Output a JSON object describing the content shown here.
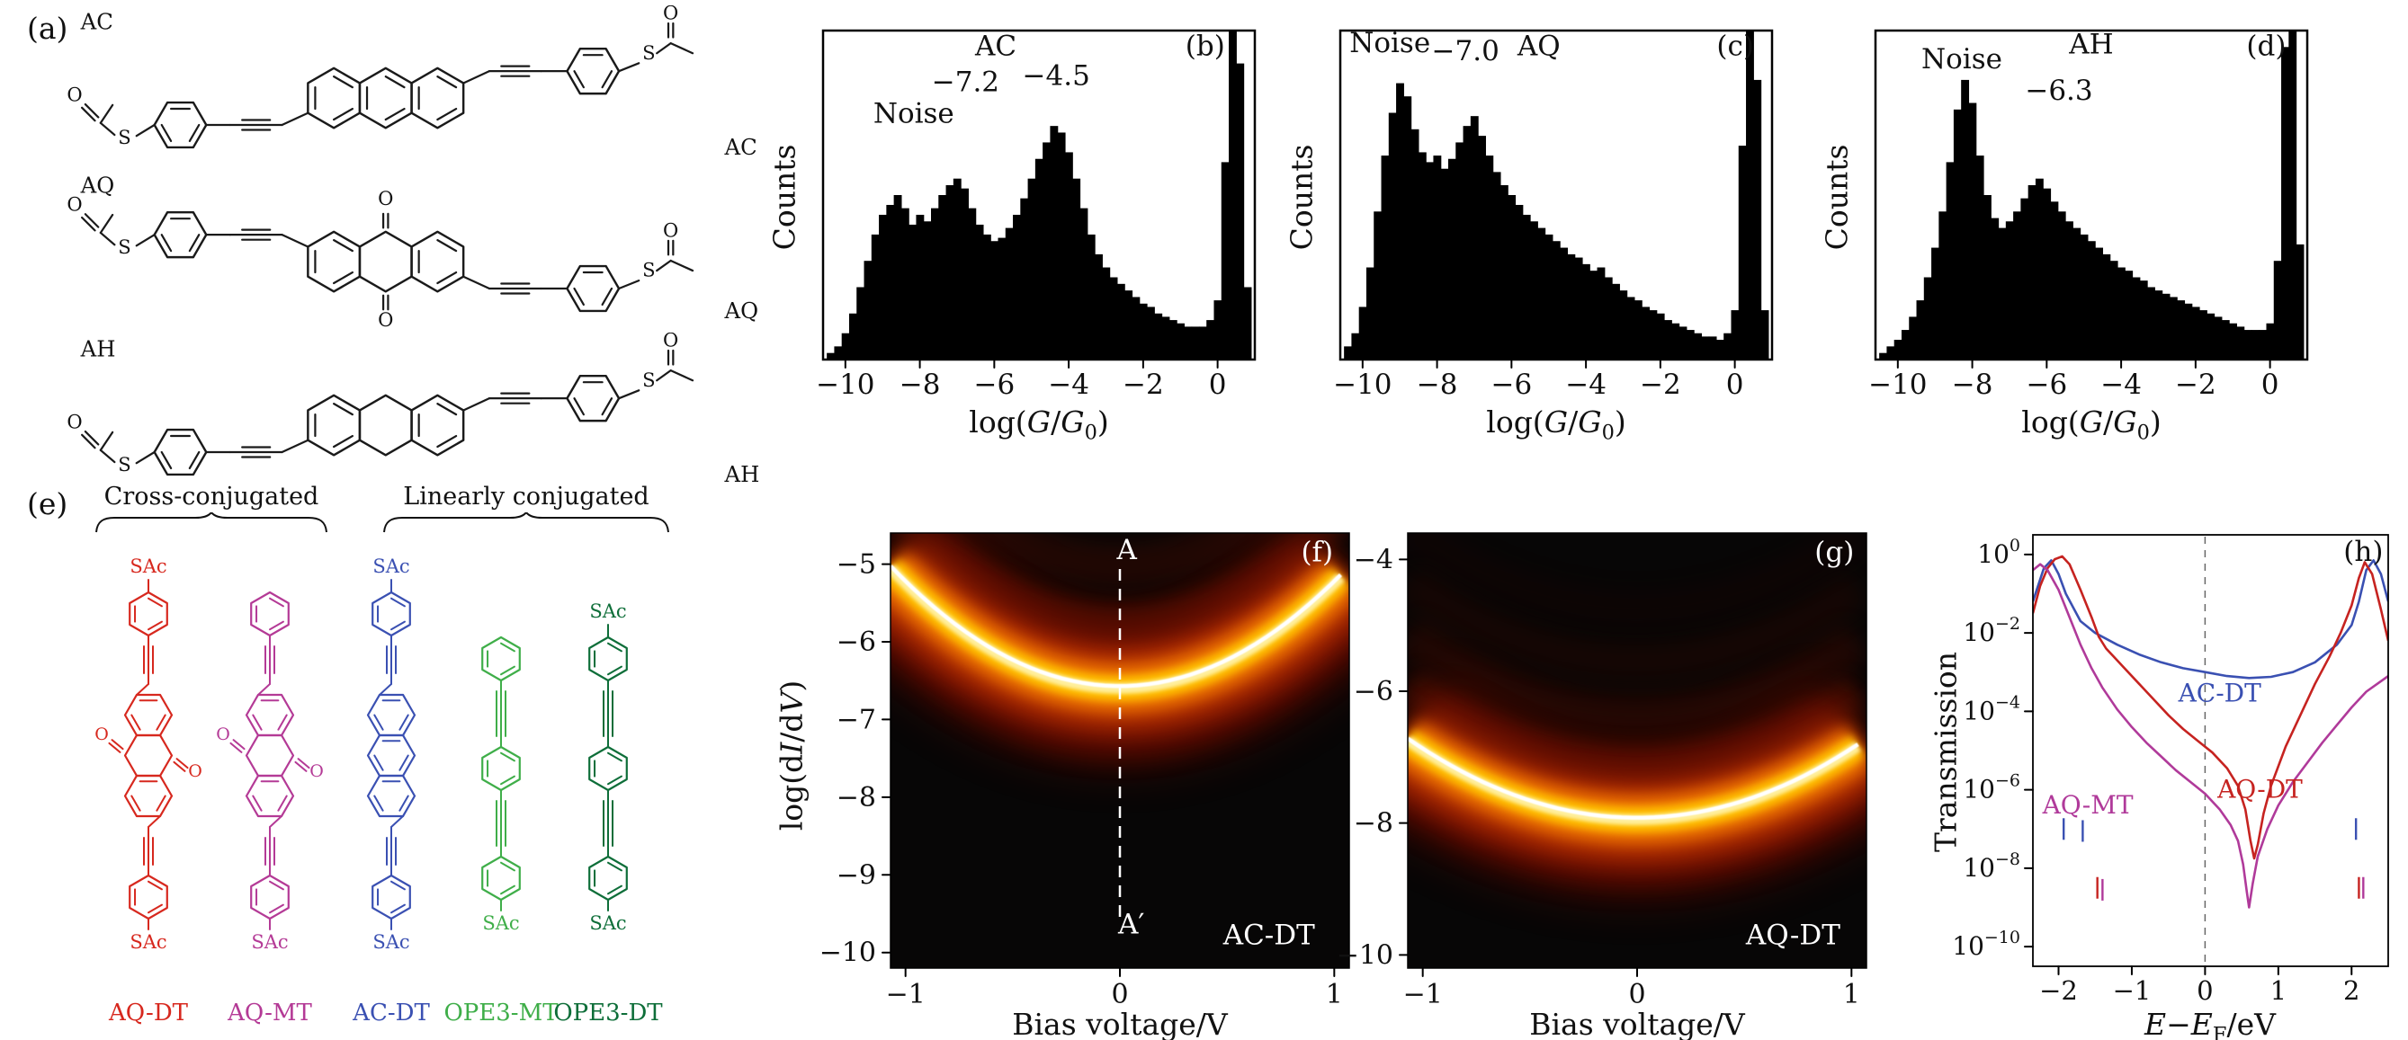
{
  "panels": {
    "a": {
      "tag": "(a)"
    },
    "e": {
      "tag": "(e)",
      "group1": "Cross-conjugated",
      "group2": "Linearly conjugated"
    }
  },
  "atoms": {
    "o": "O",
    "s": "S",
    "sac": "SAc"
  },
  "panel_a_molecules": [
    {
      "name": "AC",
      "label_right": "AC",
      "core": "anthracene",
      "tilt": "up"
    },
    {
      "name": "AQ",
      "label_right": "AQ",
      "core": "anthraquinone",
      "tilt": "down"
    },
    {
      "name": "AH",
      "label_right": "AH",
      "core": "dihydroanthracene",
      "tilt": "up"
    }
  ],
  "panel_e_molecules": [
    {
      "name": "AQ-DT",
      "color": "#d7281e",
      "type": "AQ",
      "sac_top": "SAc",
      "sac_bottom": "SAc"
    },
    {
      "name": "AQ-MT",
      "color": "#b43a96",
      "type": "AQ",
      "sac_top": "",
      "sac_bottom": "SAc"
    },
    {
      "name": "AC-DT",
      "color": "#3a50b2",
      "type": "AC",
      "sac_top": "SAc",
      "sac_bottom": "SAc"
    },
    {
      "name": "OPE3-MT",
      "color": "#3fae49",
      "type": "OPE3",
      "sac_top": "",
      "sac_bottom": "SAc"
    },
    {
      "name": "OPE3-DT",
      "color": "#0e6e39",
      "type": "OPE3",
      "sac_top": "SAc",
      "sac_bottom": "SAc"
    }
  ],
  "axis_labels": {
    "hist_x": "log(<i>G</i>/<i>G</i><sub>0</sub>)",
    "hist_y": "Counts",
    "heat_y": "log(d<i>I</i>/d<i>V</i>)",
    "heat_x": "Bias voltage/V",
    "trans_y": "Transmission",
    "trans_x": "<i>E</i>−<i>E</i><sub>F</sub>/eV"
  },
  "chart_data": [
    {
      "id": "hist-ac",
      "type": "bar",
      "panel": "b",
      "molecule": "AC",
      "xlabel": "log(G/G0)",
      "ylabel": "Counts",
      "xmin": -10.6,
      "xmax": 1.0,
      "bin_start": -10.5,
      "bin_width": 0.2,
      "xticks": [
        -10,
        -8,
        -6,
        -4,
        -2,
        0
      ],
      "peak_labels": [
        "Noise",
        "-7.2",
        "-4.5"
      ],
      "values": [
        0.02,
        0.04,
        0.08,
        0.14,
        0.22,
        0.3,
        0.38,
        0.44,
        0.47,
        0.5,
        0.46,
        0.41,
        0.44,
        0.42,
        0.46,
        0.5,
        0.53,
        0.55,
        0.52,
        0.46,
        0.41,
        0.38,
        0.36,
        0.37,
        0.4,
        0.44,
        0.49,
        0.55,
        0.61,
        0.66,
        0.71,
        0.69,
        0.63,
        0.55,
        0.46,
        0.38,
        0.32,
        0.28,
        0.25,
        0.23,
        0.21,
        0.19,
        0.17,
        0.16,
        0.14,
        0.13,
        0.12,
        0.11,
        0.1,
        0.1,
        0.1,
        0.12,
        0.18,
        0.6,
        1.0,
        0.9,
        0.22
      ],
      "annotations": [
        {
          "text": "Noise",
          "fx": 0.21,
          "fy": 0.28
        },
        {
          "text": "−7.2",
          "fx": 0.33,
          "fy": 0.185
        },
        {
          "text": "−4.5",
          "fx": 0.54,
          "fy": 0.165
        },
        {
          "text": "AC",
          "fx": 0.4,
          "fy": 0.075
        },
        {
          "text": "(b)",
          "fx": 0.885,
          "fy": 0.075
        }
      ]
    },
    {
      "id": "hist-aq",
      "type": "bar",
      "panel": "c",
      "molecule": "AQ",
      "xlabel": "log(G/G0)",
      "ylabel": "Counts",
      "xmin": -10.6,
      "xmax": 1.0,
      "bin_start": -10.5,
      "bin_width": 0.2,
      "xticks": [
        -10,
        -8,
        -6,
        -4,
        -2,
        0
      ],
      "peak_labels": [
        "Noise",
        "-7.0"
      ],
      "values": [
        0.04,
        0.08,
        0.16,
        0.28,
        0.45,
        0.62,
        0.75,
        0.84,
        0.8,
        0.7,
        0.63,
        0.6,
        0.62,
        0.58,
        0.61,
        0.66,
        0.71,
        0.74,
        0.68,
        0.62,
        0.57,
        0.53,
        0.5,
        0.47,
        0.44,
        0.42,
        0.4,
        0.38,
        0.36,
        0.34,
        0.32,
        0.31,
        0.29,
        0.27,
        0.28,
        0.25,
        0.23,
        0.21,
        0.19,
        0.18,
        0.16,
        0.15,
        0.14,
        0.12,
        0.11,
        0.1,
        0.09,
        0.08,
        0.07,
        0.07,
        0.06,
        0.08,
        0.15,
        0.65,
        1.0,
        0.85,
        0.15
      ],
      "annotations": [
        {
          "text": "Noise",
          "fx": 0.115,
          "fy": 0.065
        },
        {
          "text": "−7.0",
          "fx": 0.29,
          "fy": 0.09
        },
        {
          "text": "AQ",
          "fx": 0.46,
          "fy": 0.075
        },
        {
          "text": "(c)",
          "fx": 0.915,
          "fy": 0.075
        }
      ]
    },
    {
      "id": "hist-ah",
      "type": "bar",
      "panel": "d",
      "molecule": "AH",
      "xlabel": "log(G/G0)",
      "ylabel": "Counts",
      "xmin": -10.6,
      "xmax": 1.0,
      "bin_start": -10.5,
      "bin_width": 0.2,
      "xticks": [
        -10,
        -8,
        -6,
        -4,
        -2,
        0
      ],
      "peak_labels": [
        "Noise",
        "-6.3"
      ],
      "values": [
        0.02,
        0.04,
        0.06,
        0.09,
        0.13,
        0.18,
        0.25,
        0.34,
        0.45,
        0.6,
        0.76,
        0.85,
        0.78,
        0.62,
        0.5,
        0.43,
        0.4,
        0.42,
        0.45,
        0.49,
        0.53,
        0.55,
        0.52,
        0.48,
        0.45,
        0.42,
        0.4,
        0.38,
        0.36,
        0.34,
        0.32,
        0.3,
        0.28,
        0.27,
        0.25,
        0.24,
        0.22,
        0.21,
        0.2,
        0.19,
        0.18,
        0.17,
        0.16,
        0.15,
        0.14,
        0.13,
        0.12,
        0.11,
        0.1,
        0.09,
        0.09,
        0.09,
        0.11,
        0.3,
        0.95,
        1.0,
        0.35
      ],
      "annotations": [
        {
          "text": "Noise",
          "fx": 0.2,
          "fy": 0.115
        },
        {
          "text": "−6.3",
          "fx": 0.425,
          "fy": 0.21
        },
        {
          "text": "AH",
          "fx": 0.5,
          "fy": 0.07
        },
        {
          "text": "(d)",
          "fx": 0.905,
          "fy": 0.075
        }
      ]
    },
    {
      "id": "heat-f",
      "type": "heatmap",
      "panel": "f",
      "molecule": "AC-DT",
      "xlabel": "Bias voltage/V",
      "ylabel": "log(dI/dV)",
      "xlim": [
        -1.07,
        1.07
      ],
      "xticks": [
        -1,
        0,
        1
      ],
      "ylim_top": -4.6,
      "ylim_bottom": -10.2,
      "yticks": [
        -5,
        -6,
        -7,
        -8,
        -9,
        -10
      ],
      "band": {
        "v0": -6.6,
        "k": 1.35
      },
      "dashed_line_x": 0,
      "annotations": [
        {
          "text": "A",
          "fx": 0.515,
          "fy": 0.06
        },
        {
          "text": "(f)",
          "fx": 0.93,
          "fy": 0.065
        },
        {
          "text": "A′",
          "fx": 0.525,
          "fy": 0.92
        },
        {
          "text": "AC-DT",
          "fx": 0.825,
          "fy": 0.945
        }
      ]
    },
    {
      "id": "heat-g",
      "type": "heatmap",
      "panel": "g",
      "molecule": "AQ-DT",
      "xlabel": "Bias voltage/V",
      "ylabel": "log(dI/dV)",
      "xlim": [
        -1.07,
        1.07
      ],
      "xticks": [
        -1,
        0,
        1
      ],
      "ylim_top": -3.6,
      "ylim_bottom": -10.2,
      "yticks": [
        -4,
        -6,
        -8,
        -10
      ],
      "band": {
        "v0": -7.95,
        "k": 1.05
      },
      "annotations": [
        {
          "text": "(g)",
          "fx": 0.93,
          "fy": 0.065
        },
        {
          "text": "AQ-DT",
          "fx": 0.84,
          "fy": 0.945
        }
      ]
    },
    {
      "id": "trans-h",
      "type": "line",
      "panel": "h",
      "xlabel": "E−EF/eV",
      "ylabel": "Transmission",
      "xlim": [
        -2.35,
        2.5
      ],
      "xticks": [
        -2,
        -1,
        0,
        1,
        2
      ],
      "ylim_exp": [
        0.5,
        -10.5
      ],
      "ytick_exponents": [
        0,
        -2,
        -4,
        -6,
        -8,
        -10
      ],
      "dashed_line_x": 0,
      "series": [
        {
          "name": "AC-DT",
          "color": "#3a50b2",
          "points": [
            [
              -2.35,
              -1.2
            ],
            [
              -2.2,
              -0.35
            ],
            [
              -2.1,
              -0.15
            ],
            [
              -2.0,
              -0.5
            ],
            [
              -1.9,
              -1.0
            ],
            [
              -1.7,
              -1.7
            ],
            [
              -1.5,
              -2.0
            ],
            [
              -1.2,
              -2.3
            ],
            [
              -0.9,
              -2.55
            ],
            [
              -0.6,
              -2.75
            ],
            [
              -0.3,
              -2.9
            ],
            [
              0,
              -3.0
            ],
            [
              0.3,
              -3.1
            ],
            [
              0.6,
              -3.15
            ],
            [
              0.9,
              -3.12
            ],
            [
              1.2,
              -3.0
            ],
            [
              1.5,
              -2.75
            ],
            [
              1.8,
              -2.3
            ],
            [
              2.0,
              -1.8
            ],
            [
              2.1,
              -1.2
            ],
            [
              2.2,
              -0.4
            ],
            [
              2.3,
              -0.15
            ],
            [
              2.4,
              -0.5
            ],
            [
              2.5,
              -1.2
            ]
          ]
        },
        {
          "name": "AQ-DT",
          "color": "#c62320",
          "points": [
            [
              -2.35,
              -1.5
            ],
            [
              -2.25,
              -0.8
            ],
            [
              -2.15,
              -0.35
            ],
            [
              -2.05,
              -0.12
            ],
            [
              -1.95,
              -0.05
            ],
            [
              -1.85,
              -0.25
            ],
            [
              -1.7,
              -0.9
            ],
            [
              -1.55,
              -1.6
            ],
            [
              -1.45,
              -2.1
            ],
            [
              -1.35,
              -2.4
            ],
            [
              -1.25,
              -2.6
            ],
            [
              -1.1,
              -2.9
            ],
            [
              -0.9,
              -3.3
            ],
            [
              -0.7,
              -3.7
            ],
            [
              -0.5,
              -4.1
            ],
            [
              -0.3,
              -4.45
            ],
            [
              -0.1,
              -4.75
            ],
            [
              0.1,
              -5.05
            ],
            [
              0.3,
              -5.45
            ],
            [
              0.45,
              -5.9
            ],
            [
              0.55,
              -6.5
            ],
            [
              0.62,
              -7.3
            ],
            [
              0.67,
              -7.75
            ],
            [
              0.72,
              -7.4
            ],
            [
              0.8,
              -6.6
            ],
            [
              0.9,
              -5.9
            ],
            [
              1.1,
              -4.9
            ],
            [
              1.3,
              -4.1
            ],
            [
              1.5,
              -3.3
            ],
            [
              1.7,
              -2.6
            ],
            [
              1.85,
              -2.0
            ],
            [
              2.0,
              -1.3
            ],
            [
              2.1,
              -0.6
            ],
            [
              2.18,
              -0.2
            ],
            [
              2.28,
              -0.5
            ],
            [
              2.4,
              -1.4
            ],
            [
              2.5,
              -2.2
            ]
          ]
        },
        {
          "name": "AQ-MT",
          "color": "#b03a9a",
          "points": [
            [
              -2.35,
              -0.4
            ],
            [
              -2.25,
              -0.25
            ],
            [
              -2.15,
              -0.4
            ],
            [
              -2.0,
              -0.9
            ],
            [
              -1.85,
              -1.6
            ],
            [
              -1.7,
              -2.3
            ],
            [
              -1.55,
              -2.9
            ],
            [
              -1.4,
              -3.4
            ],
            [
              -1.2,
              -3.95
            ],
            [
              -1.0,
              -4.4
            ],
            [
              -0.8,
              -4.8
            ],
            [
              -0.6,
              -5.15
            ],
            [
              -0.4,
              -5.5
            ],
            [
              -0.2,
              -5.8
            ],
            [
              0,
              -6.1
            ],
            [
              0.2,
              -6.5
            ],
            [
              0.35,
              -6.9
            ],
            [
              0.45,
              -7.3
            ],
            [
              0.52,
              -7.9
            ],
            [
              0.57,
              -8.6
            ],
            [
              0.6,
              -9.0
            ],
            [
              0.65,
              -8.4
            ],
            [
              0.72,
              -7.7
            ],
            [
              0.85,
              -7.0
            ],
            [
              1.0,
              -6.4
            ],
            [
              1.2,
              -5.8
            ],
            [
              1.4,
              -5.3
            ],
            [
              1.6,
              -4.8
            ],
            [
              1.8,
              -4.35
            ],
            [
              2.0,
              -3.9
            ],
            [
              2.2,
              -3.5
            ],
            [
              2.35,
              -3.3
            ],
            [
              2.5,
              -3.1
            ]
          ]
        }
      ],
      "markers": [
        {
          "x": -1.93,
          "e": -7.0,
          "color": "#3a50b2"
        },
        {
          "x": -1.67,
          "e": -7.05,
          "color": "#3a50b2"
        },
        {
          "x": -1.47,
          "e": -8.5,
          "color": "#c62320"
        },
        {
          "x": -1.4,
          "e": -8.55,
          "color": "#b03a9a"
        },
        {
          "x": 2.06,
          "e": -7.0,
          "color": "#3a50b2"
        },
        {
          "x": 2.1,
          "e": -8.5,
          "color": "#c62320"
        },
        {
          "x": 2.16,
          "e": -8.5,
          "color": "#b03a9a"
        }
      ],
      "curve_labels": [
        {
          "text": "AC-DT",
          "x": 0.2,
          "e": -3.75,
          "color": "#3a50b2"
        },
        {
          "text": "AQ-DT",
          "x": 0.75,
          "e": -6.2,
          "color": "#c62320"
        },
        {
          "text": "AQ-MT",
          "x": -1.6,
          "e": -6.6,
          "color": "#b03a9a"
        }
      ],
      "annotations": [
        {
          "text": "(h)",
          "fx": 0.93,
          "fy": 0.06
        }
      ]
    }
  ]
}
